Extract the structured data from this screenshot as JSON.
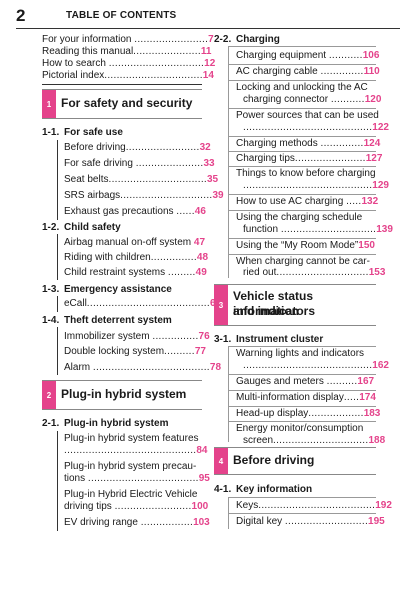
{
  "header": {
    "page_number": "2",
    "title": "TABLE OF CONTENTS"
  },
  "intro": [
    {
      "label": "For your information ",
      "dots": "........................",
      "page": "7"
    },
    {
      "label": "Reading this manual",
      "dots": "......................",
      "page": "11"
    },
    {
      "label": "How to search ",
      "dots": "...............................",
      "page": "12"
    },
    {
      "label": "Pictorial index",
      "dots": "................................",
      "page": "14"
    }
  ],
  "ch1": {
    "num": "1",
    "title": "For safety and security"
  },
  "s1_1": {
    "num": "1-1.",
    "title": "For safe use"
  },
  "s1_1_items": [
    {
      "label": "Before driving",
      "dots": "........................",
      "page": "32"
    },
    {
      "label": "For safe driving ",
      "dots": "......................",
      "page": "33"
    },
    {
      "label": "Seat belts",
      "dots": "................................",
      "page": "35"
    },
    {
      "label": "SRS airbags",
      "dots": "..............................",
      "page": "39"
    },
    {
      "label": "Exhaust gas precautions ",
      "dots": "......",
      "page": "46"
    }
  ],
  "s1_2": {
    "num": "1-2.",
    "title": "Child safety"
  },
  "s1_2_items": [
    {
      "label": "Airbag manual on-off system ",
      "dots": "",
      "page": "47"
    },
    {
      "label": "Riding with children",
      "dots": "...............",
      "page": "48"
    },
    {
      "label": "Child restraint systems ",
      "dots": ".........",
      "page": "49"
    }
  ],
  "s1_3": {
    "num": "1-3.",
    "title": "Emergency assistance"
  },
  "s1_3_items": [
    {
      "label": "eCall",
      "dots": "........................................",
      "page": "66"
    }
  ],
  "s1_4": {
    "num": "1-4.",
    "title": "Theft deterrent system"
  },
  "s1_4_items": [
    {
      "label": "Immobilizer system ",
      "dots": "...............",
      "page": "76"
    },
    {
      "label": "Double locking system",
      "dots": "..........",
      "page": "77"
    },
    {
      "label": "Alarm ",
      "dots": "......................................",
      "page": "78"
    }
  ],
  "ch2": {
    "num": "2",
    "title": "Plug-in hybrid system"
  },
  "s2_1": {
    "num": "2-1.",
    "title": "Plug-in hybrid system"
  },
  "s2_1_items": {
    "features_l1": "Plug-in hybrid system features",
    "features_dots": "...........................................",
    "features_page": "84",
    "prec_l1": "Plug-in hybrid system precau-",
    "prec_l2": "tions ",
    "prec_dots": "....................................",
    "prec_page": "95",
    "tips_l1": "Plug-in Hybrid Electric Vehicle",
    "tips_l2": "driving tips ",
    "tips_dots": ".........................",
    "tips_page": "100",
    "range_label": "EV driving range ",
    "range_dots": ".................",
    "range_page": "103"
  },
  "s2_2": {
    "num": "2-2.",
    "title": "Charging"
  },
  "s2_2_items": {
    "equip_label": "Charging equipment ",
    "equip_dots": "...........",
    "equip_page": "106",
    "cable_label": "AC charging cable ",
    "cable_dots": "..............",
    "cable_page": "110",
    "lock_l1": "Locking and unlocking the AC",
    "lock_l2": "charging connector ",
    "lock_dots": "...........",
    "lock_page": "120",
    "power_l1": "Power sources that can be used",
    "power_dots": "..........................................",
    "power_page": "122",
    "methods_label": "Charging methods ",
    "methods_dots": "..............",
    "methods_page": "124",
    "tips_label": "Charging tips",
    "tips_dots": ".......................",
    "tips_page": "127",
    "know_l1": "Things to know before charging",
    "know_dots": "..........................................",
    "know_page": "129",
    "ac_label": "How to use AC charging ",
    "ac_dots": ".....",
    "ac_page": "132",
    "sched_l1": "Using the charging schedule",
    "sched_l2": "function ",
    "sched_dots": "...............................",
    "sched_page": "139",
    "myroom_label": "Using the “My Room Mode”",
    "myroom_page": "150",
    "cannot_l1": "When charging cannot be car-",
    "cannot_l2": "ried out",
    "cannot_dots": "..............................",
    "cannot_page": "153"
  },
  "ch3": {
    "num": "3",
    "title_l1": "Vehicle status information",
    "title_l2": "and indicators"
  },
  "s3_1": {
    "num": "3-1.",
    "title": "Instrument cluster"
  },
  "s3_1_items": {
    "warn_l1": "Warning lights and indicators",
    "warn_dots": "..........................................",
    "warn_page": "162",
    "gauges_label": "Gauges and meters ",
    "gauges_dots": "..........",
    "gauges_page": "167",
    "multi_label": "Multi-information display",
    "multi_dots": ".....",
    "multi_page": "174",
    "hud_label": "Head-up display",
    "hud_dots": "..................",
    "hud_page": "183",
    "energy_l1": "Energy monitor/consumption",
    "energy_l2": "screen",
    "energy_dots": "...............................",
    "energy_page": "188"
  },
  "ch4": {
    "num": "4",
    "title": "Before driving"
  },
  "s4_1": {
    "num": "4-1.",
    "title": "Key information"
  },
  "s4_1_items": {
    "keys_label": "Keys",
    "keys_dots": "......................................",
    "keys_page": "192",
    "digital_label": "Digital key ",
    "digital_dots": "...........................",
    "digital_page": "195"
  }
}
